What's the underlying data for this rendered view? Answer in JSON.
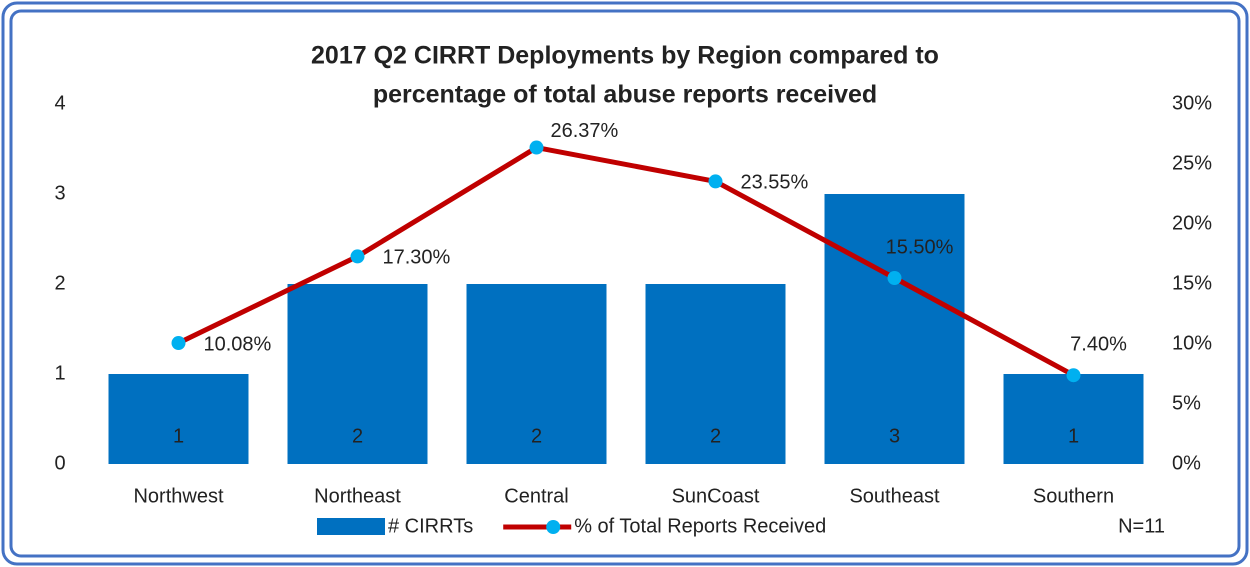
{
  "chart_data": {
    "type": "bar",
    "title": [
      "2017 Q2 CIRRT Deployments by Region compared to",
      "percentage of total abuse reports received"
    ],
    "categories": [
      "Northwest",
      "Northeast",
      "Central",
      "SunCoast",
      "Southeast",
      "Southern"
    ],
    "series": [
      {
        "name": "# CIRRTs",
        "type": "bar",
        "color": "#0070C0",
        "values": [
          1,
          2,
          2,
          2,
          3,
          1
        ]
      },
      {
        "name": "% of Total Reports Received",
        "type": "line",
        "axis": "y2",
        "color": "#C00000",
        "marker_color": "#00B0F0",
        "values": [
          10.08,
          17.3,
          26.37,
          23.55,
          15.5,
          7.4
        ],
        "value_labels": [
          "10.08%",
          "17.30%",
          "26.37%",
          "23.55%",
          "15.50%",
          "7.40%"
        ]
      }
    ],
    "ylim": [
      0,
      4
    ],
    "yticks": [
      0,
      1,
      2,
      3,
      4
    ],
    "y2lim": [
      0,
      30
    ],
    "y2ticks": [
      {
        "value": 0,
        "label": "0%"
      },
      {
        "value": 5,
        "label": "5%"
      },
      {
        "value": 10,
        "label": "10%"
      },
      {
        "value": 15,
        "label": "15%"
      },
      {
        "value": 20,
        "label": "20%"
      },
      {
        "value": 25,
        "label": "25%"
      },
      {
        "value": 30,
        "label": "30%"
      }
    ],
    "grid": false,
    "legend": "bottom",
    "annotation": "N=11"
  }
}
